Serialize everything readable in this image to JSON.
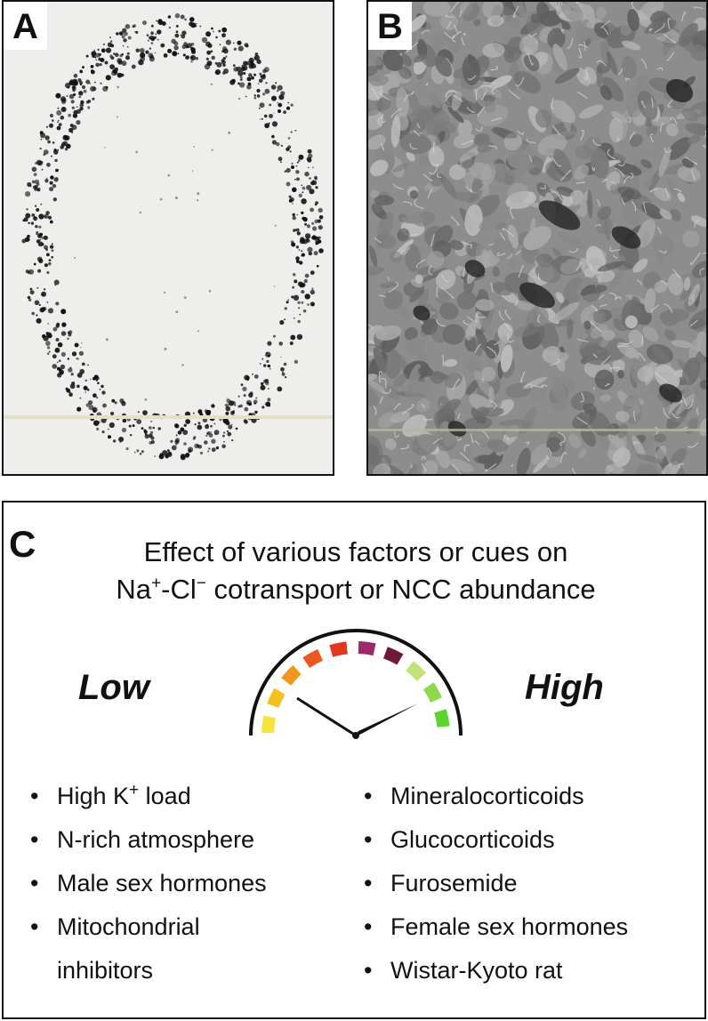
{
  "panels": {
    "a": {
      "letter": "A"
    },
    "b": {
      "letter": "B"
    },
    "c": {
      "letter": "C",
      "title_line1": "Effect of various factors or cues on",
      "title_line2_prefix": "Na",
      "title_line2_sup1": "+",
      "title_line2_mid": "-Cl",
      "title_line2_sup2": "−",
      "title_line2_suffix": " cotransport or NCC abundance",
      "scale_low": "Low",
      "scale_high": "High",
      "gauge_colors": [
        "#f5e43a",
        "#f5c11e",
        "#f3961f",
        "#ea5a20",
        "#e3361d",
        "#9e2a6a",
        "#6d1a36",
        "#c3e37a",
        "#8fd84e",
        "#5dd530"
      ],
      "low_factors": [
        {
          "prefix": "High K",
          "sup": "+",
          "suffix": " load"
        },
        {
          "prefix": "N-rich atmosphere",
          "sup": "",
          "suffix": ""
        },
        {
          "prefix": "Male sex hormones",
          "sup": "",
          "suffix": ""
        },
        {
          "prefix": "Mitochondrial",
          "sup": "",
          "suffix": ""
        }
      ],
      "low_factors_continuation": "inhibitors",
      "high_factors": [
        "Mineralocorticoids",
        "Glucocorticoids",
        "Furosemide",
        "Female sex hormones",
        "Wistar-Kyoto rat"
      ]
    }
  }
}
